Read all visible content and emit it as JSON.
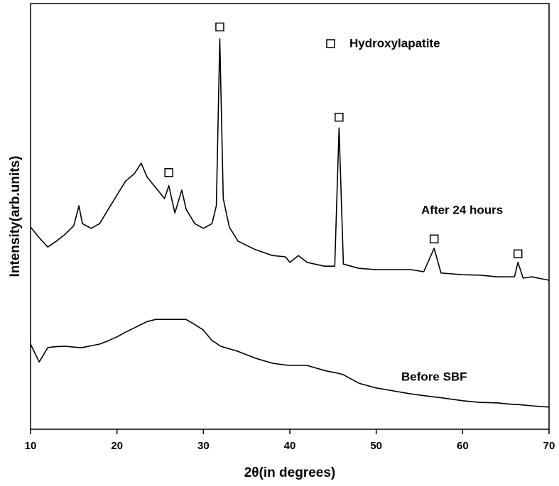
{
  "chart_data": {
    "type": "line",
    "x_label": "2θ(in degrees)",
    "y_label": "Intensity(arb.units)",
    "xlim": [
      10,
      70
    ],
    "xticks": [
      10,
      20,
      30,
      40,
      50,
      60,
      70
    ],
    "ylim": [
      0,
      100
    ],
    "x": [
      10,
      11,
      12,
      13,
      14,
      15,
      15.6,
      16,
      17,
      18,
      19,
      20,
      21,
      22,
      22.8,
      23.5,
      24.5,
      25.5,
      26,
      26.7,
      27.5,
      28,
      29,
      30,
      31,
      31.5,
      31.9,
      32.3,
      33,
      34,
      36,
      38,
      39.5,
      40,
      41,
      42,
      44,
      45.2,
      45.7,
      46.2,
      48,
      50,
      52,
      54,
      55.5,
      56.7,
      57.5,
      60,
      62,
      64,
      66,
      66.4,
      67,
      68,
      70
    ],
    "series": [
      {
        "name": "After 24 hours",
        "color": "#000000",
        "values": [
          47.5,
          45,
          42.8,
          44.2,
          45.8,
          47.8,
          52.5,
          48.3,
          47.2,
          48.3,
          51.7,
          55,
          58.3,
          60,
          62.5,
          59.2,
          56.7,
          54.2,
          57.2,
          50.8,
          56.2,
          51.7,
          48.3,
          47.2,
          48.3,
          52.5,
          91.7,
          54.2,
          47.5,
          44.2,
          42.2,
          40.8,
          40.5,
          39.2,
          40.8,
          39.2,
          38.3,
          38.3,
          70.8,
          38.8,
          37.8,
          37.5,
          37.5,
          37.5,
          37,
          42.5,
          36.7,
          36.3,
          36.2,
          35.8,
          35.8,
          39.2,
          35.5,
          35.8,
          35
        ]
      },
      {
        "name": "Before SBF",
        "color": "#000000",
        "values": [
          20,
          15.8,
          19.2,
          19.4,
          19.5,
          19.3,
          19.2,
          19.2,
          19.6,
          20,
          20.8,
          21.7,
          22.8,
          23.8,
          24.6,
          25.3,
          25.8,
          25.8,
          25.8,
          25.8,
          25.8,
          25.8,
          24.6,
          23.3,
          20.8,
          20.2,
          19.6,
          19.3,
          18.9,
          18.3,
          16.7,
          15.5,
          15.1,
          15,
          15,
          15,
          13.8,
          13.3,
          13.1,
          12.8,
          10.8,
          9.7,
          9,
          8.3,
          7.9,
          7.6,
          7.4,
          6.7,
          6.3,
          6.2,
          5.8,
          5.8,
          5.7,
          5.5,
          5.2
        ]
      }
    ],
    "peak_markers": {
      "label": "Hydroxylapatite",
      "x": [
        26,
        31.9,
        45.7,
        56.7,
        66.4
      ],
      "y": [
        60.3,
        94.5,
        73.3,
        44.7,
        41.2
      ]
    }
  }
}
